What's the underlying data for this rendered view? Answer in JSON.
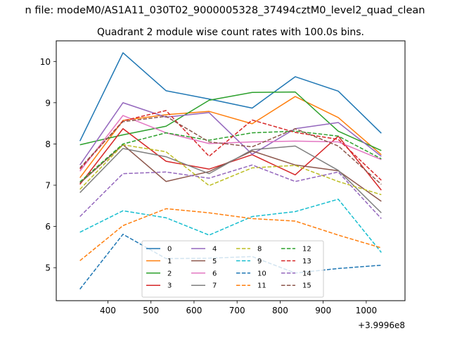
{
  "figure": {
    "suptitle": "n file: modeM0/AS1A11_030T02_9000005328_37494cztM0_level2_quad_clean",
    "title": "Quadrant 2 module wise count rates with 100.0s bins.",
    "x_offset_label": "+3.9996e8"
  },
  "chart_data": {
    "type": "line",
    "title": "Quadrant 2 module wise count rates with 100.0s bins.",
    "xlabel": "",
    "ylabel": "",
    "x_offset": "+3.9996e8",
    "x": [
      335,
      435,
      535,
      635,
      735,
      835,
      935,
      1035
    ],
    "xlim": [
      280,
      1090
    ],
    "ylim": [
      4.2,
      10.5
    ],
    "xticks": [
      "400",
      "500",
      "600",
      "700",
      "800",
      "900",
      "1000"
    ],
    "xtick_values": [
      400,
      500,
      600,
      700,
      800,
      900,
      1000
    ],
    "yticks": [
      "5",
      "6",
      "7",
      "8",
      "9",
      "10"
    ],
    "ytick_values": [
      5,
      6,
      7,
      8,
      9,
      10
    ],
    "grid": false,
    "legend": {
      "placement": "bottom-center",
      "columns": 4
    },
    "series": [
      {
        "name": "0",
        "color": "#1f77b4",
        "dash": "solid",
        "values": [
          8.07,
          10.21,
          9.29,
          9.09,
          8.87,
          9.63,
          9.28,
          8.26
        ]
      },
      {
        "name": "1",
        "color": "#ff7f0e",
        "dash": "solid",
        "values": [
          7.18,
          8.57,
          8.71,
          8.79,
          8.49,
          9.15,
          8.64,
          7.74
        ]
      },
      {
        "name": "2",
        "color": "#2ca02c",
        "dash": "solid",
        "values": [
          7.98,
          8.22,
          8.43,
          9.06,
          9.25,
          9.26,
          8.31,
          7.84
        ]
      },
      {
        "name": "3",
        "color": "#d62728",
        "dash": "solid",
        "values": [
          7.02,
          8.37,
          7.58,
          7.39,
          7.74,
          7.25,
          8.19,
          6.88
        ]
      },
      {
        "name": "4",
        "color": "#9467bd",
        "dash": "solid",
        "values": [
          7.49,
          9.0,
          8.65,
          8.76,
          7.75,
          8.37,
          8.52,
          7.7
        ]
      },
      {
        "name": "5",
        "color": "#8c564b",
        "dash": "solid",
        "values": [
          7.05,
          7.98,
          7.09,
          7.33,
          7.83,
          7.49,
          7.35,
          6.61
        ]
      },
      {
        "name": "6",
        "color": "#e377c2",
        "dash": "solid",
        "values": [
          7.34,
          8.69,
          8.27,
          8.01,
          8.05,
          8.07,
          8.05,
          7.62
        ]
      },
      {
        "name": "7",
        "color": "#7f7f7f",
        "dash": "solid",
        "values": [
          6.82,
          7.89,
          7.69,
          7.28,
          7.86,
          7.95,
          7.36,
          6.33
        ]
      },
      {
        "name": "8",
        "color": "#bcbd22",
        "dash": "dashed",
        "values": [
          6.9,
          7.98,
          7.81,
          6.99,
          7.42,
          7.48,
          7.09,
          6.77
        ]
      },
      {
        "name": "9",
        "color": "#17becf",
        "dash": "dashed",
        "values": [
          5.86,
          6.38,
          6.21,
          5.79,
          6.24,
          6.36,
          6.66,
          5.37
        ]
      },
      {
        "name": "10",
        "color": "#1f77b4",
        "dash": "dashed",
        "values": [
          4.48,
          5.81,
          5.22,
          5.23,
          5.27,
          4.87,
          4.98,
          5.06
        ]
      },
      {
        "name": "11",
        "color": "#ff7f0e",
        "dash": "dashed",
        "values": [
          5.17,
          6.02,
          6.43,
          6.33,
          6.19,
          6.13,
          5.79,
          5.48
        ]
      },
      {
        "name": "12",
        "color": "#2ca02c",
        "dash": "dashed",
        "values": [
          7.08,
          8.0,
          8.27,
          8.09,
          8.27,
          8.31,
          8.19,
          7.64
        ]
      },
      {
        "name": "13",
        "color": "#d62728",
        "dash": "dashed",
        "values": [
          7.39,
          8.56,
          8.81,
          7.7,
          8.58,
          8.28,
          8.11,
          7.12
        ]
      },
      {
        "name": "14",
        "color": "#9467bd",
        "dash": "dashed",
        "values": [
          6.24,
          7.28,
          7.32,
          7.17,
          7.49,
          7.09,
          7.32,
          6.19
        ]
      },
      {
        "name": "15",
        "color": "#8c564b",
        "dash": "dashed",
        "values": [
          7.42,
          8.54,
          8.67,
          8.05,
          7.93,
          8.37,
          7.95,
          7.02
        ]
      }
    ]
  }
}
